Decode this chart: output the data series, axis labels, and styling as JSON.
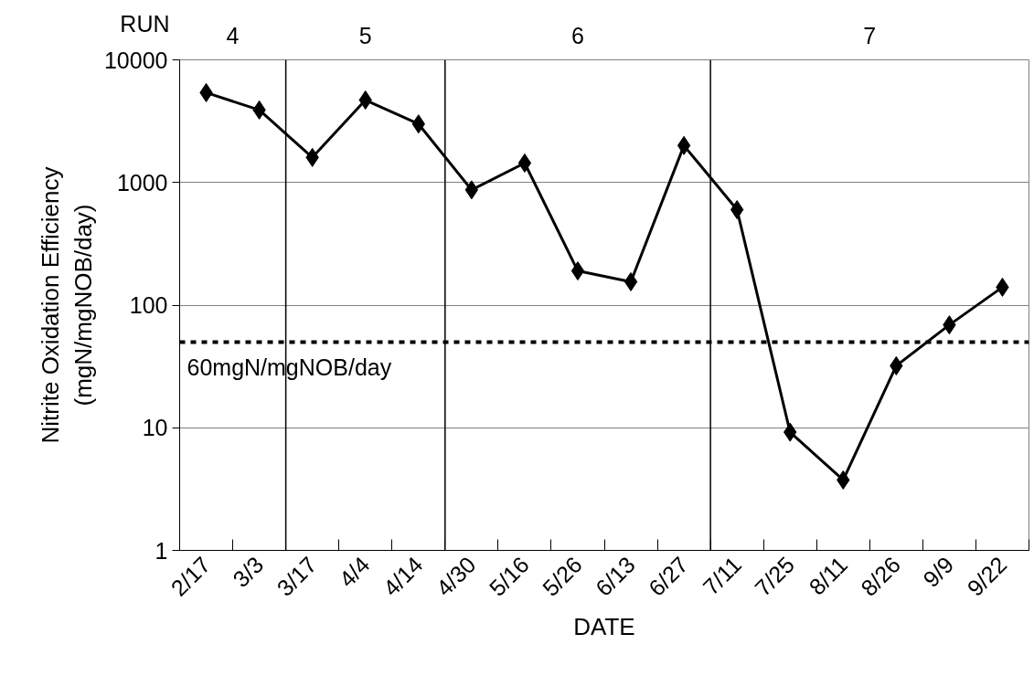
{
  "chart_data": {
    "type": "line",
    "xlabel": "DATE",
    "ylabel": "Nitrite Oxidation Efficiency\n(mgN/mgNOB/day)",
    "categories": [
      "2/17",
      "3/3",
      "3/17",
      "4/4",
      "4/14",
      "4/30",
      "5/16",
      "5/26",
      "6/13",
      "6/27",
      "7/11",
      "7/25",
      "8/11",
      "8/26",
      "9/9",
      "9/22"
    ],
    "series": [
      {
        "color": "#000000",
        "values": [
          5400,
          3900,
          1600,
          4700,
          3000,
          870,
          1440,
          190,
          155,
          2000,
          600,
          9.2,
          3.75,
          32,
          69,
          140
        ]
      }
    ],
    "log": "y",
    "ylim": [
      1,
      10000
    ],
    "yticks": [
      1,
      10,
      100,
      1000,
      10000
    ],
    "grid": "y",
    "marker": "diamond",
    "line_style": "solid",
    "annotations": [
      "RUN",
      "4",
      "5",
      "6",
      "7"
    ],
    "ref_lines": [
      {
        "axis": "y",
        "value": 50,
        "label": "60mgN/mgNOB/day",
        "color": "#000000",
        "line_style": "dashed"
      }
    ]
  }
}
